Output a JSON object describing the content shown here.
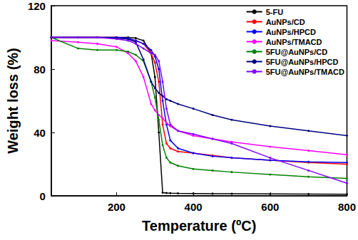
{
  "chart_data": {
    "type": "line",
    "x_label": "Temperature (ºC)",
    "y_label": "Weight loss (%)",
    "x": [
      30,
      100,
      150,
      200,
      230,
      250,
      270,
      290,
      300,
      310,
      320,
      330,
      340,
      360,
      400,
      450,
      500,
      600,
      700,
      800
    ],
    "series": [
      {
        "name": "5-FU",
        "color": "#000000",
        "values": [
          100,
          100,
          100,
          100,
          100,
          99.5,
          98,
          90,
          75,
          40,
          2,
          1.8,
          1.7,
          1.6,
          1.5,
          1.4,
          1.3,
          1.2,
          1.1,
          1
        ]
      },
      {
        "name": "AuNPs/CD",
        "color": "#ff0000",
        "values": [
          100,
          100,
          100,
          100,
          99,
          98,
          96,
          90,
          84,
          72,
          45,
          33,
          30,
          28,
          27,
          25.5,
          24,
          22.5,
          21,
          20
        ]
      },
      {
        "name": "AuNPs/HPCD",
        "color": "#0000ff",
        "values": [
          100,
          100,
          100,
          100,
          99.5,
          98,
          96,
          92,
          88,
          80,
          60,
          45,
          35,
          30,
          27,
          25,
          24,
          22.5,
          21.5,
          21
        ]
      },
      {
        "name": "AuNPs/TMACD",
        "color": "#ff00ff",
        "values": [
          98,
          97,
          96,
          94,
          90,
          85,
          75,
          58,
          54,
          51,
          49,
          46,
          44,
          41,
          38,
          36,
          34,
          31,
          28.5,
          26
        ]
      },
      {
        "name": "5FU@AuNPs/CD",
        "color": "#008000",
        "values": [
          100,
          93,
          92,
          92,
          91,
          89,
          85,
          72,
          62,
          48,
          32,
          24,
          21,
          19,
          17,
          16,
          15,
          13.5,
          12,
          11
        ]
      },
      {
        "name": "5FU@AuNPs/HPCD",
        "color": "#000080",
        "values": [
          100,
          100,
          100,
          99.5,
          99,
          97,
          86,
          72,
          68,
          65,
          63,
          61,
          60,
          58,
          55,
          51,
          48,
          44,
          41,
          38
        ]
      },
      {
        "name": "5FU@AuNPs/TMACD",
        "color": "#8000ff",
        "values": [
          100,
          100,
          100,
          99,
          98,
          96,
          93,
          90,
          89,
          85,
          72,
          55,
          45,
          41,
          39,
          36,
          33,
          24,
          16,
          8
        ]
      }
    ],
    "xlim": [
      30,
      800
    ],
    "xticks": [
      200,
      400,
      600,
      800
    ],
    "ylim": [
      0,
      120
    ],
    "yticks": [
      0,
      40,
      80,
      120
    ],
    "grid": false,
    "legend": "top-right",
    "marker": "circle"
  }
}
